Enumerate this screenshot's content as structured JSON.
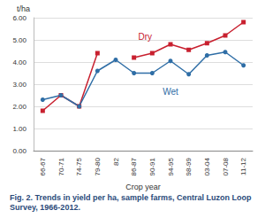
{
  "chart_data": {
    "type": "line",
    "title": "Fig. 2. Trends in yield per ha, sample farms, Central Luzon Loop Survey, 1966-2012.",
    "xlabel": "Crop year",
    "ylabel": "t/ha",
    "categories": [
      "66-67",
      "70-71",
      "74-75",
      "79-80",
      "82",
      "86-87",
      "90-91",
      "94-95",
      "98-99",
      "03-04",
      "07-08",
      "11-12"
    ],
    "series": [
      {
        "name": "Dry",
        "color": "#c8202f",
        "marker": "square",
        "values": [
          1.8,
          2.5,
          2.0,
          4.4,
          null,
          4.2,
          4.4,
          4.8,
          4.55,
          4.85,
          5.2,
          5.8
        ]
      },
      {
        "name": "Wet",
        "color": "#2f6ea6",
        "marker": "circle",
        "values": [
          2.3,
          2.5,
          2.0,
          3.6,
          4.1,
          3.5,
          3.5,
          4.05,
          3.45,
          4.3,
          4.45,
          3.85
        ]
      }
    ],
    "ylim": [
      0,
      6
    ],
    "yticks": [
      {
        "value": 0,
        "label": "0.00"
      },
      {
        "value": 1,
        "label": "1.00"
      },
      {
        "value": 2,
        "label": "2.00"
      },
      {
        "value": 3,
        "label": "3.00"
      },
      {
        "value": 4,
        "label": "4.00"
      },
      {
        "value": 5,
        "label": "5.00"
      },
      {
        "value": 6,
        "label": "6.00"
      }
    ],
    "grid": true
  }
}
